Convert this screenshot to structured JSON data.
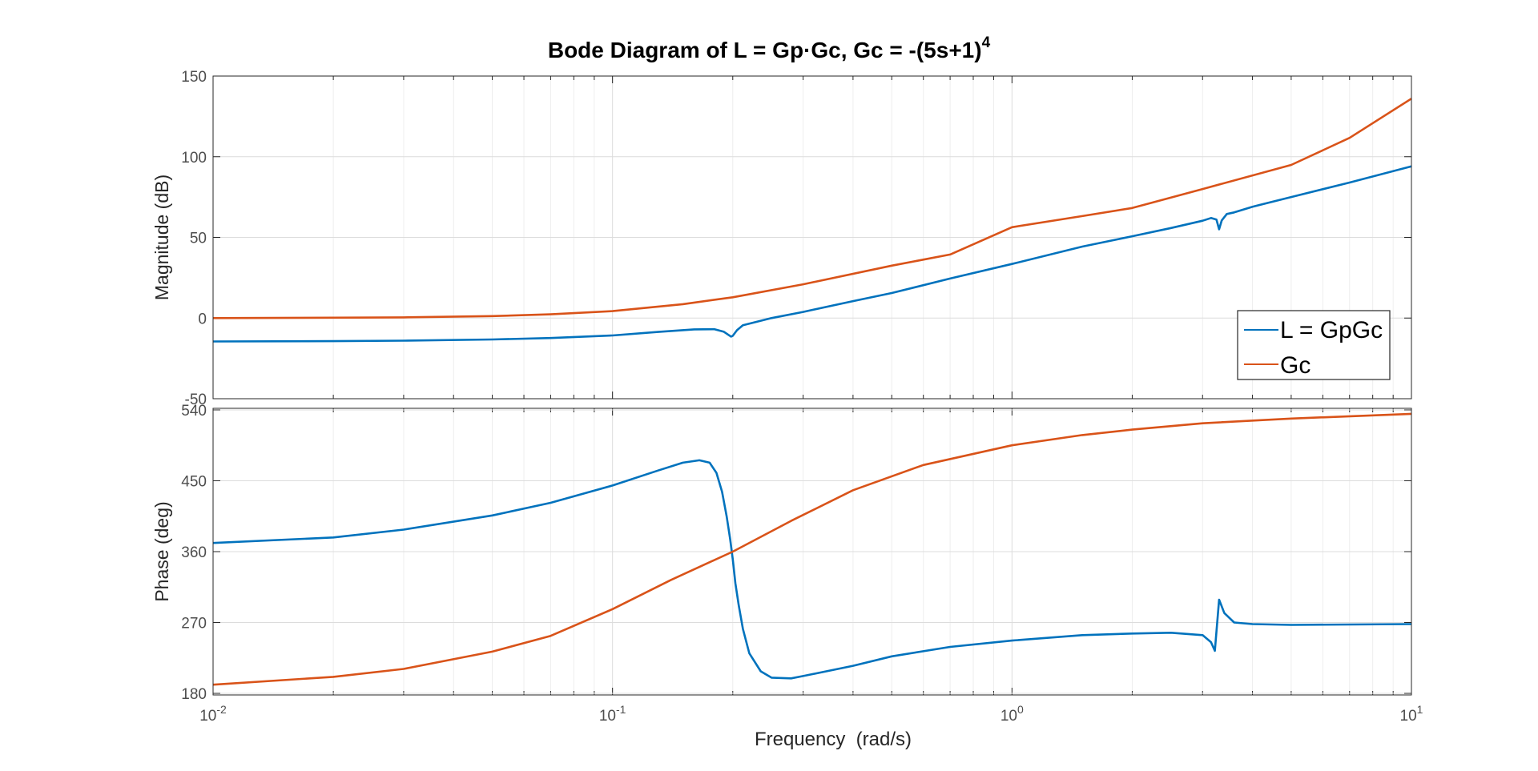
{
  "chart_data": {
    "type": "line",
    "title": "Bode Diagram of L = Gp·Gc, Gc = -(5s+1)",
    "title_superscript": "4",
    "xlabel": "Frequency  (rad/s)",
    "xscale": "log",
    "xlim": [
      0.01,
      10
    ],
    "x_ticks": [
      {
        "value": 0.01,
        "base": "10",
        "exp": "-2"
      },
      {
        "value": 0.1,
        "base": "10",
        "exp": "-1"
      },
      {
        "value": 1,
        "base": "10",
        "exp": "0"
      },
      {
        "value": 10,
        "base": "10",
        "exp": "1"
      }
    ],
    "grid": true,
    "colors": {
      "L": "#0072BD",
      "Gc": "#D95319",
      "grid": "#e6e6e6",
      "axis": "#262626",
      "tick_text": "#4d4d4d"
    },
    "panels": [
      {
        "name": "magnitude",
        "ylabel": "Magnitude (dB)",
        "ylim": [
          -50,
          150
        ],
        "y_ticks": [
          "-50",
          "0",
          "50",
          "100",
          "150"
        ],
        "y_tick_values": [
          -50,
          0,
          50,
          100,
          150
        ],
        "legend": {
          "position": "bottom-right",
          "entries": [
            "L = GpGc",
            "Gc"
          ]
        },
        "series": [
          {
            "name": "L = GpGc",
            "x": [
              0.01,
              0.02,
              0.03,
              0.05,
              0.07,
              0.1,
              0.13,
              0.16,
              0.18,
              0.19,
              0.198,
              0.2,
              0.205,
              0.212,
              0.22,
              0.25,
              0.3,
              0.4,
              0.5,
              0.7,
              1,
              1.5,
              2,
              2.5,
              3,
              3.15,
              3.25,
              3.3,
              3.35,
              3.45,
              3.6,
              4,
              5,
              7,
              10
            ],
            "y": [
              -14.5,
              -14.3,
              -14,
              -13.3,
              -12.4,
              -10.8,
              -8.6,
              -7,
              -6.9,
              -8.5,
              -11.5,
              -11,
              -7.5,
              -4.5,
              -3.5,
              0,
              3.8,
              10.5,
              15.5,
              24.5,
              33.5,
              44.3,
              50.7,
              55.8,
              60.3,
              62,
              61,
              55,
              60.5,
              64.5,
              65.5,
              69,
              75,
              84,
              94
            ]
          },
          {
            "name": "Gc",
            "x": [
              0.01,
              0.02,
              0.03,
              0.05,
              0.07,
              0.1,
              0.15,
              0.2,
              0.3,
              0.5,
              0.7,
              1,
              1.5,
              2,
              3,
              5,
              7,
              10
            ],
            "y": [
              0,
              0.2,
              0.4,
              1.2,
              2.3,
              4.3,
              8.6,
              12.9,
              20.9,
              32.5,
              39.4,
              56.3,
              63.2,
              68.2,
              80,
              94.9,
              111.7,
              136
            ]
          }
        ]
      },
      {
        "name": "phase",
        "ylabel": "Phase (deg)",
        "ylim": [
          178,
          542
        ],
        "y_ticks": [
          "180",
          "270",
          "360",
          "450",
          "540"
        ],
        "y_tick_values": [
          180,
          270,
          360,
          450,
          540
        ],
        "series": [
          {
            "name": "L = GpGc",
            "x": [
              0.01,
              0.02,
              0.03,
              0.05,
              0.07,
              0.1,
              0.13,
              0.15,
              0.165,
              0.175,
              0.182,
              0.188,
              0.193,
              0.197,
              0.2,
              0.203,
              0.207,
              0.212,
              0.22,
              0.235,
              0.25,
              0.28,
              0.3,
              0.4,
              0.5,
              0.7,
              1,
              1.5,
              2,
              2.5,
              3,
              3.15,
              3.22,
              3.3,
              3.4,
              3.6,
              4,
              5,
              10
            ],
            "y": [
              371,
              378,
              388,
              406,
              422,
              444,
              463,
              473,
              476,
              473,
              460,
              436,
              405,
              376,
              350,
              320,
              292,
              262,
              231,
              208,
              200,
              199,
              202,
              215,
              227,
              239,
              247,
              254,
              256,
              257,
              254,
              245,
              234,
              299,
              282,
              270,
              268,
              267,
              268
            ]
          },
          {
            "name": "Gc",
            "x": [
              0.01,
              0.02,
              0.03,
              0.05,
              0.07,
              0.1,
              0.14,
              0.2,
              0.28,
              0.4,
              0.6,
              1,
              1.5,
              2,
              3,
              5,
              10
            ],
            "y": [
              191,
              201,
              211,
              233,
              253,
              287,
              324,
              360,
              399,
              438,
              470,
              495,
              508,
              515,
              523,
              529,
              535
            ]
          }
        ]
      }
    ]
  }
}
